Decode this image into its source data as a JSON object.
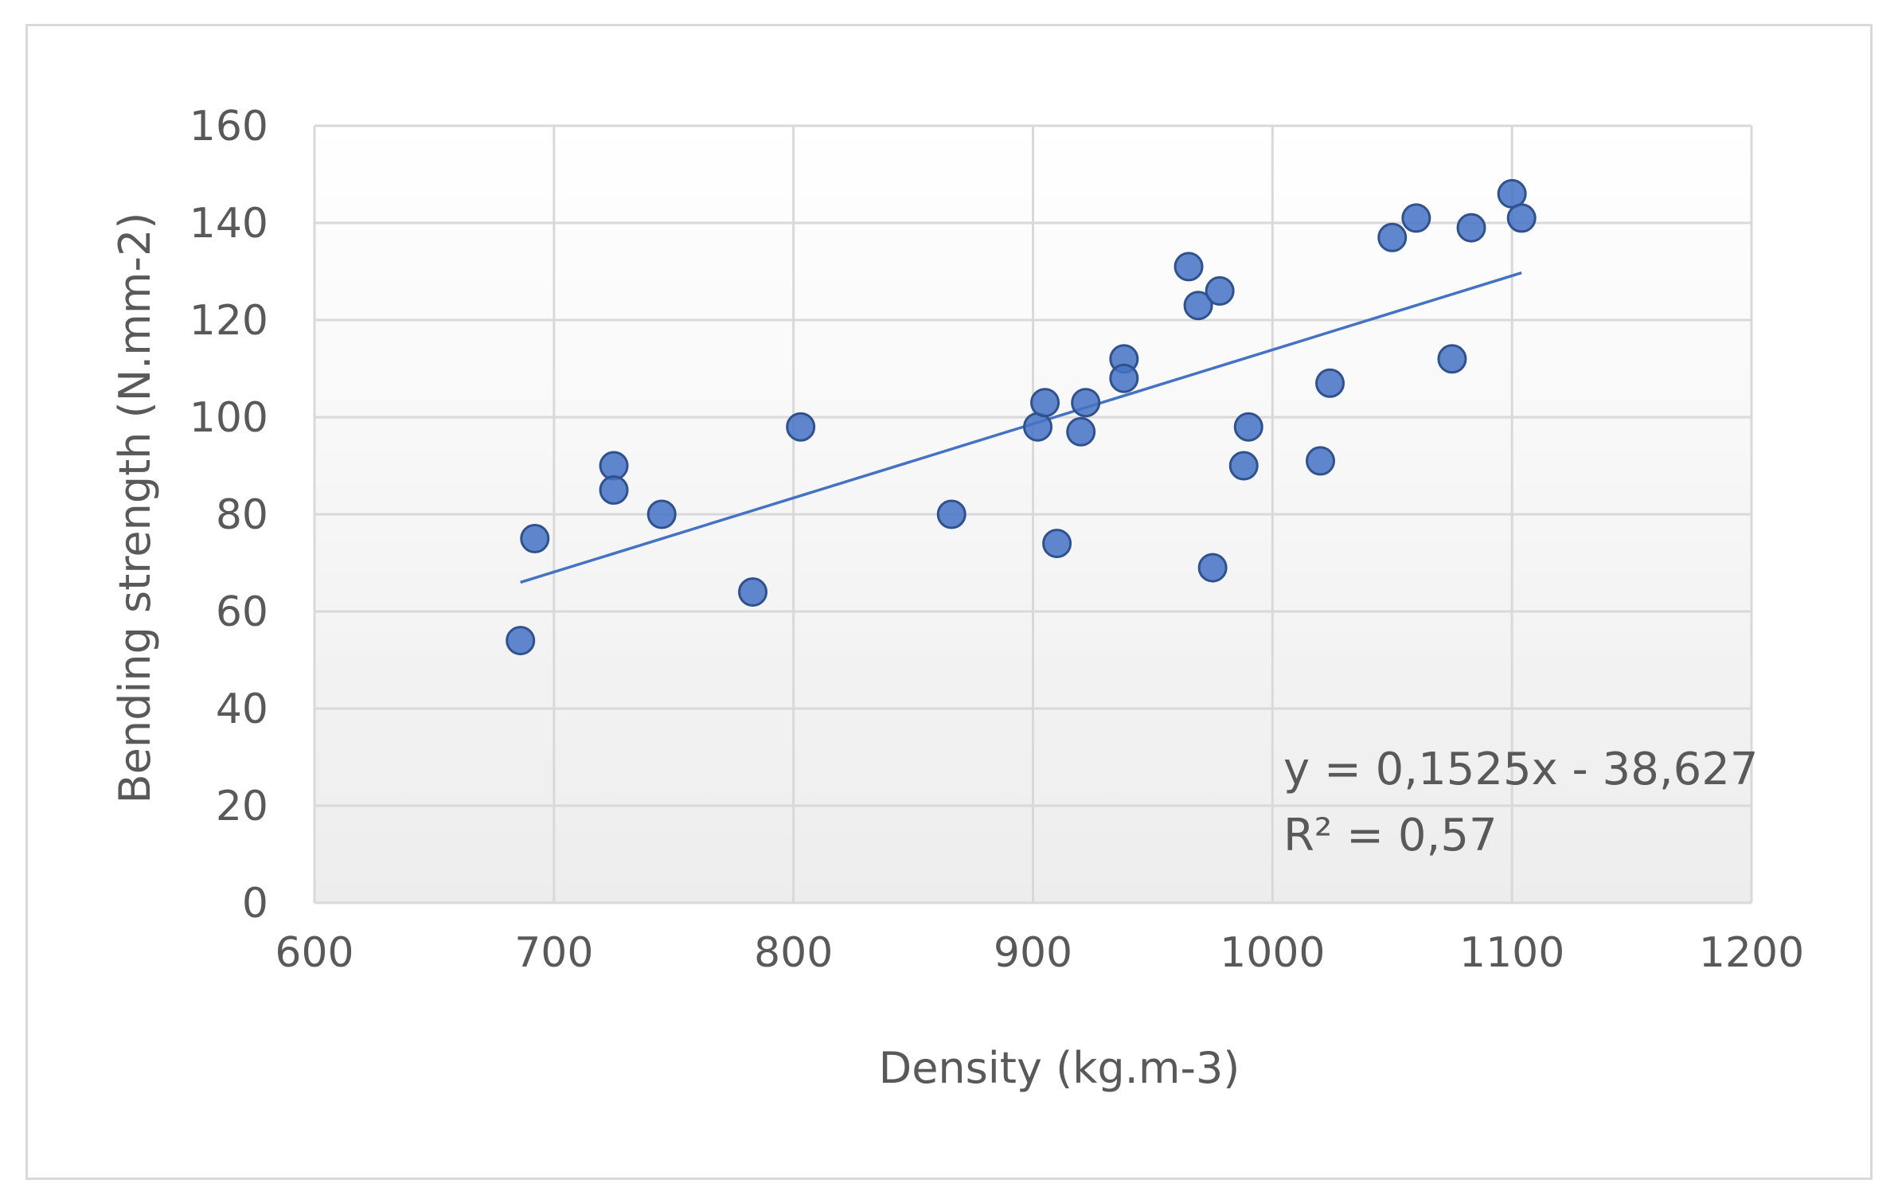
{
  "chart_data": {
    "type": "scatter",
    "title": "",
    "xlabel": "Density (kg.m-3)",
    "ylabel": "Bending strength (N.mm-2)",
    "xlim": [
      600,
      1200
    ],
    "ylim": [
      0,
      160
    ],
    "xticks": [
      600,
      700,
      800,
      900,
      1000,
      1100,
      1200
    ],
    "yticks": [
      0,
      20,
      40,
      60,
      80,
      100,
      120,
      140,
      160
    ],
    "grid": true,
    "series": [
      {
        "name": "Bending strength",
        "color": "#4472C4",
        "points": [
          {
            "x": 686,
            "y": 54
          },
          {
            "x": 692,
            "y": 75
          },
          {
            "x": 725,
            "y": 90
          },
          {
            "x": 725,
            "y": 85
          },
          {
            "x": 745,
            "y": 80
          },
          {
            "x": 783,
            "y": 64
          },
          {
            "x": 803,
            "y": 98
          },
          {
            "x": 866,
            "y": 80
          },
          {
            "x": 902,
            "y": 98
          },
          {
            "x": 905,
            "y": 103
          },
          {
            "x": 910,
            "y": 74
          },
          {
            "x": 920,
            "y": 97
          },
          {
            "x": 922,
            "y": 103
          },
          {
            "x": 938,
            "y": 112
          },
          {
            "x": 938,
            "y": 108
          },
          {
            "x": 965,
            "y": 131
          },
          {
            "x": 969,
            "y": 123
          },
          {
            "x": 975,
            "y": 69
          },
          {
            "x": 978,
            "y": 126
          },
          {
            "x": 988,
            "y": 90
          },
          {
            "x": 990,
            "y": 98
          },
          {
            "x": 1020,
            "y": 91
          },
          {
            "x": 1024,
            "y": 107
          },
          {
            "x": 1050,
            "y": 137
          },
          {
            "x": 1060,
            "y": 141
          },
          {
            "x": 1075,
            "y": 112
          },
          {
            "x": 1083,
            "y": 139
          },
          {
            "x": 1100,
            "y": 146
          },
          {
            "x": 1104,
            "y": 141
          }
        ]
      }
    ],
    "trendline": {
      "type": "linear",
      "slope": 0.1525,
      "intercept": -38.627,
      "x_range": [
        686,
        1104
      ],
      "color": "#4472C4",
      "equation_label": "y = 0,1525x - 38,627",
      "r2_label": "R² = 0,57",
      "label_position": "bottom-right"
    }
  }
}
